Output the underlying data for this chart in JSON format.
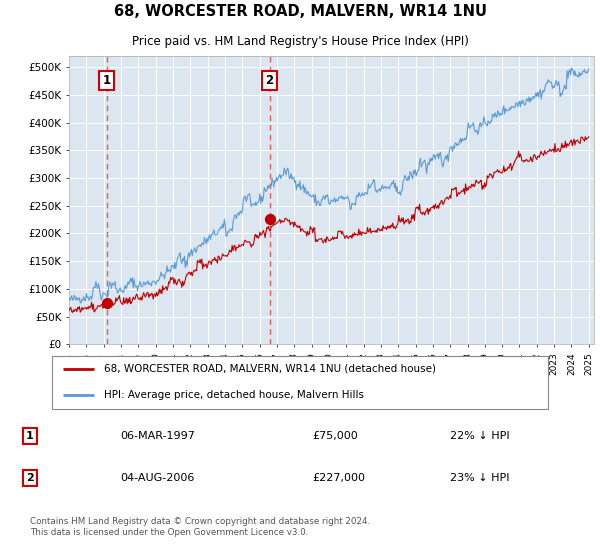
{
  "title": "68, WORCESTER ROAD, MALVERN, WR14 1NU",
  "subtitle": "Price paid vs. HM Land Registry's House Price Index (HPI)",
  "x_start_year": 1995,
  "x_end_year": 2025,
  "ylim": [
    0,
    520000
  ],
  "yticks": [
    0,
    50000,
    100000,
    150000,
    200000,
    250000,
    300000,
    350000,
    400000,
    450000,
    500000
  ],
  "sale1_year": 1997.17,
  "sale1_price": 75000,
  "sale1_label": "1",
  "sale1_date": "06-MAR-1997",
  "sale1_hpi_diff": "22% ↓ HPI",
  "sale2_year": 2006.58,
  "sale2_price": 227000,
  "sale2_label": "2",
  "sale2_date": "04-AUG-2006",
  "sale2_hpi_diff": "23% ↓ HPI",
  "hpi_color": "#5b9bd5",
  "price_color": "#c00000",
  "dashed_line_color": "#e06060",
  "bg_color": "#dce6f1",
  "legend1_label": "68, WORCESTER ROAD, MALVERN, WR14 1NU (detached house)",
  "legend2_label": "HPI: Average price, detached house, Malvern Hills",
  "footer": "Contains HM Land Registry data © Crown copyright and database right 2024.\nThis data is licensed under the Open Government Licence v3.0.",
  "grid_color": "#ffffff",
  "face_color": "#dce6f1",
  "label_box_color": "#cc0000"
}
